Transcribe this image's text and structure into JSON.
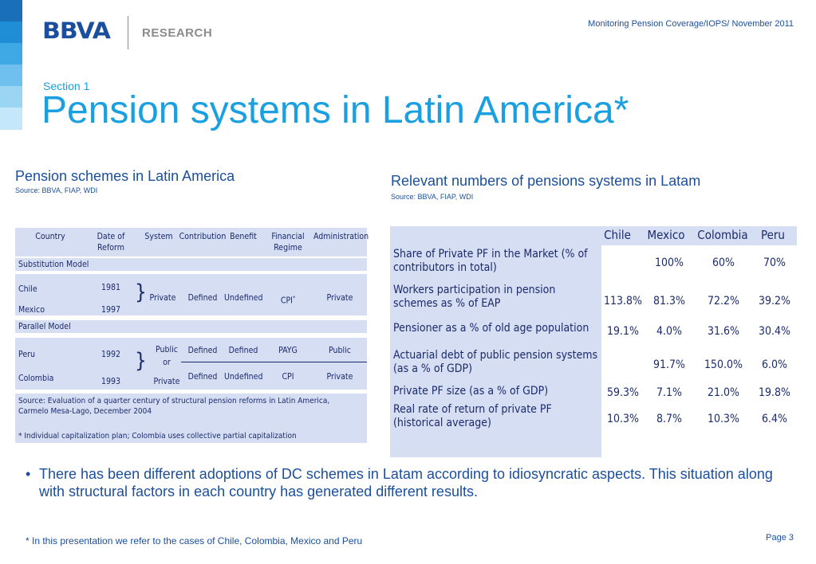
{
  "header": {
    "logo": "BBVA",
    "research": "RESEARCH",
    "right_text": "Monitoring Pension Coverage/IOPS/ November 2011"
  },
  "section_label": "Section 1",
  "title": "Pension systems in Latin America*",
  "left_panel": {
    "heading": "Pension schemes in Latin America",
    "source": "Source: BBVA, FIAP, WDI",
    "columns": [
      "Country",
      "Date of Reform",
      "System",
      "Contribution",
      "Benefit",
      "Financial Regime",
      "Administration"
    ],
    "substitution_label": "Substitution Model",
    "substitution_rows": [
      {
        "country": "Chile",
        "date": "1981"
      },
      {
        "country": "Mexico",
        "date": "1997"
      }
    ],
    "substitution_shared": {
      "system": "Private",
      "contribution": "Defined",
      "benefit": "Undefined",
      "regime": "CPI",
      "regime_sup": "*",
      "administration": "Private"
    },
    "parallel_label": "Parallel Model",
    "parallel_rows": [
      {
        "country": "Peru",
        "date": "1992",
        "contribution": "Defined",
        "benefit": "Defined",
        "regime": "PAYG",
        "administration": "Public"
      },
      {
        "country": "Colombia",
        "date": "1993",
        "contribution": "Defined",
        "benefit": "Undefined",
        "regime": "CPI",
        "administration": "Private"
      }
    ],
    "parallel_system": [
      "Public",
      "or",
      "Private"
    ],
    "note_source": "Source: Evaluation of a quarter century of structural pension reforms in Latin America, Carmelo Mesa-Lago, December 2004",
    "note_star": "* Individual capitalization plan; Colombia uses collective partial capitalization"
  },
  "right_panel": {
    "heading": "Relevant numbers of pensions systems in Latam",
    "source": "Source: BBVA, FIAP, WDI",
    "countries": [
      "Chile",
      "Mexico",
      "Colombia",
      "Peru"
    ],
    "rows": [
      {
        "label": "Share of Private PF in the Market (% of contributors in total)",
        "values": [
          "",
          "100%",
          "60%",
          "70%"
        ]
      },
      {
        "label": "Workers participation in pension schemes as % of EAP",
        "values": [
          "113.8%",
          "81.3%",
          "72.2%",
          "39.2%"
        ]
      },
      {
        "label": "Pensioner as a % of old age population",
        "values": [
          "19.1%",
          "4.0%",
          "31.6%",
          "30.4%"
        ]
      },
      {
        "label": "Actuarial debt of public pension systems (as a % of GDP)",
        "values": [
          "",
          "91.7%",
          "150.0%",
          "6.0%"
        ]
      },
      {
        "label": "Private PF size (as a % of GDP)",
        "values": [
          "59.3%",
          "7.1%",
          "21.0%",
          "19.8%"
        ]
      },
      {
        "label": "Real rate of return of private PF (historical average)",
        "values": [
          "10.3%",
          "8.7%",
          "10.3%",
          "6.4%"
        ]
      }
    ]
  },
  "bullet": "There has been different adoptions of DC schemes in Latam according to idiosyncratic aspects. This situation along with structural factors in each country has generated different results.",
  "footnote": "* In this presentation we refer to the cases of Chile, Colombia, Mexico and Peru",
  "page_label": "Page 3"
}
